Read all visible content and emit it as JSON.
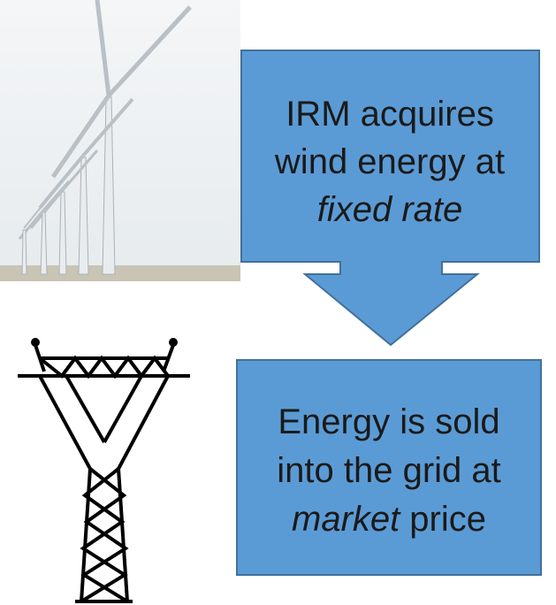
{
  "nodes": [
    {
      "lines": [
        "IRM acquires",
        "wind energy at",
        "fixed rate"
      ]
    },
    {
      "lines": [
        "Energy is sold",
        "into the grid at"
      ],
      "last_line": [
        "market",
        "price"
      ]
    }
  ]
}
